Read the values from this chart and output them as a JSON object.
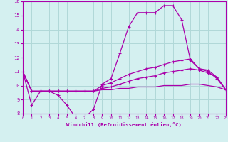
{
  "xlabel": "Windchill (Refroidissement éolien,°C)",
  "hours": [
    0,
    1,
    2,
    3,
    4,
    5,
    6,
    7,
    8,
    9,
    10,
    11,
    12,
    13,
    14,
    15,
    16,
    17,
    18,
    19,
    20,
    21,
    22,
    23
  ],
  "line1": [
    11.0,
    8.6,
    9.6,
    9.6,
    9.3,
    8.6,
    7.7,
    7.7,
    8.3,
    10.1,
    10.5,
    12.3,
    14.2,
    15.2,
    15.2,
    15.2,
    15.7,
    15.7,
    14.7,
    11.8,
    11.2,
    11.0,
    10.5,
    9.7
  ],
  "line2": [
    11.0,
    9.6,
    9.6,
    9.6,
    9.6,
    9.6,
    9.6,
    9.6,
    9.6,
    10.0,
    10.2,
    10.5,
    10.8,
    11.0,
    11.2,
    11.3,
    11.5,
    11.7,
    11.8,
    11.9,
    11.2,
    11.1,
    10.6,
    9.7
  ],
  "line3": [
    11.0,
    9.6,
    9.6,
    9.6,
    9.6,
    9.6,
    9.6,
    9.6,
    9.6,
    9.8,
    9.9,
    10.1,
    10.3,
    10.5,
    10.6,
    10.7,
    10.9,
    11.0,
    11.1,
    11.2,
    11.1,
    10.9,
    10.6,
    9.7
  ],
  "line4": [
    11.0,
    9.6,
    9.6,
    9.6,
    9.6,
    9.6,
    9.6,
    9.6,
    9.6,
    9.7,
    9.7,
    9.8,
    9.8,
    9.9,
    9.9,
    9.9,
    10.0,
    10.0,
    10.0,
    10.1,
    10.1,
    10.0,
    9.9,
    9.7
  ],
  "line_color": "#aa00aa",
  "bg_color": "#d4f0f0",
  "grid_color": "#b0d8d8",
  "ylim": [
    8,
    16
  ],
  "yticks": [
    8,
    9,
    10,
    11,
    12,
    13,
    14,
    15,
    16
  ],
  "xlim": [
    0,
    23
  ]
}
